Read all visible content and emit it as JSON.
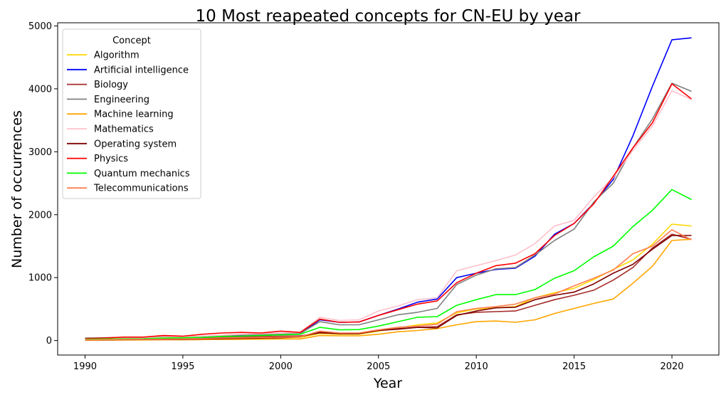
{
  "chart_data": {
    "type": "line",
    "title": "10 Most reapeated concepts for CN-EU by year",
    "xlabel": "Year",
    "ylabel": "Number of occurrences",
    "xlim": [
      1988.6,
      2022.4
    ],
    "ylim": [
      -230,
      5050
    ],
    "xticks": [
      1990,
      1995,
      2000,
      2005,
      2010,
      2015,
      2020
    ],
    "yticks": [
      0,
      1000,
      2000,
      3000,
      4000,
      5000
    ],
    "grid": false,
    "legend": {
      "title": "Concept",
      "placement": "top-left"
    },
    "x": [
      1990,
      1991,
      1992,
      1993,
      1994,
      1995,
      1996,
      1997,
      1998,
      1999,
      2000,
      2001,
      2002,
      2003,
      2004,
      2005,
      2006,
      2007,
      2008,
      2009,
      2010,
      2011,
      2012,
      2013,
      2014,
      2015,
      2016,
      2017,
      2018,
      2019,
      2020,
      2021
    ],
    "series": [
      {
        "name": "Algorithm",
        "color": "#FFD700",
        "values": [
          10,
          12,
          15,
          18,
          20,
          22,
          25,
          30,
          35,
          40,
          45,
          50,
          110,
          100,
          100,
          150,
          200,
          250,
          280,
          440,
          500,
          520,
          540,
          680,
          760,
          830,
          970,
          1130,
          1280,
          1530,
          1850,
          1820
        ]
      },
      {
        "name": "Artificial intelligence",
        "color": "#0000FF",
        "values": [
          20,
          25,
          30,
          35,
          40,
          45,
          55,
          70,
          75,
          85,
          95,
          105,
          330,
          290,
          295,
          400,
          500,
          610,
          660,
          1000,
          1070,
          1130,
          1150,
          1340,
          1690,
          1860,
          2180,
          2560,
          3250,
          4040,
          4780,
          4810
        ]
      },
      {
        "name": "Biology",
        "color": "#A52A2A",
        "values": [
          15,
          18,
          22,
          24,
          28,
          30,
          40,
          55,
          60,
          65,
          70,
          75,
          120,
          110,
          110,
          160,
          190,
          210,
          220,
          410,
          450,
          460,
          470,
          560,
          650,
          720,
          800,
          960,
          1160,
          1470,
          1690,
          1610
        ]
      },
      {
        "name": "Engineering",
        "color": "#808080",
        "values": [
          40,
          45,
          50,
          55,
          60,
          60,
          70,
          80,
          90,
          95,
          100,
          110,
          300,
          250,
          250,
          330,
          410,
          450,
          510,
          890,
          1040,
          1140,
          1160,
          1360,
          1590,
          1770,
          2200,
          2500,
          3060,
          3520,
          4090,
          3960
        ]
      },
      {
        "name": "Machine learning",
        "color": "#FFA500",
        "values": [
          5,
          6,
          8,
          10,
          12,
          12,
          15,
          18,
          20,
          22,
          25,
          25,
          80,
          75,
          75,
          100,
          140,
          160,
          190,
          250,
          300,
          310,
          290,
          330,
          430,
          510,
          590,
          660,
          910,
          1180,
          1590,
          1610
        ]
      },
      {
        "name": "Mathematics",
        "color": "#FFC0CB",
        "values": [
          30,
          35,
          40,
          45,
          55,
          60,
          70,
          85,
          100,
          110,
          120,
          130,
          370,
          320,
          330,
          470,
          550,
          650,
          680,
          1110,
          1190,
          1270,
          1360,
          1540,
          1820,
          1910,
          2280,
          2590,
          3020,
          3410,
          3970,
          3830
        ]
      },
      {
        "name": "Operating system",
        "color": "#800000",
        "values": [
          10,
          12,
          15,
          16,
          18,
          20,
          25,
          30,
          35,
          40,
          45,
          60,
          130,
          110,
          110,
          160,
          180,
          210,
          200,
          400,
          470,
          520,
          530,
          650,
          720,
          770,
          900,
          1070,
          1210,
          1450,
          1670,
          1670
        ]
      },
      {
        "name": "Physics",
        "color": "#FF0000",
        "values": [
          30,
          40,
          55,
          55,
          80,
          70,
          100,
          120,
          130,
          120,
          150,
          130,
          340,
          290,
          295,
          400,
          490,
          580,
          630,
          920,
          1070,
          1190,
          1230,
          1380,
          1670,
          1860,
          2170,
          2610,
          3060,
          3460,
          4080,
          3840
        ]
      },
      {
        "name": "Quantum mechanics",
        "color": "#00FF00",
        "values": [
          20,
          25,
          28,
          30,
          40,
          45,
          50,
          65,
          70,
          80,
          90,
          100,
          210,
          170,
          175,
          230,
          300,
          370,
          380,
          560,
          650,
          730,
          730,
          810,
          990,
          1110,
          1330,
          1500,
          1810,
          2070,
          2400,
          2240
        ]
      },
      {
        "name": "Telecommunications",
        "color": "#FF7F50",
        "values": [
          12,
          15,
          18,
          20,
          22,
          25,
          30,
          40,
          45,
          50,
          55,
          60,
          150,
          120,
          120,
          170,
          210,
          230,
          260,
          460,
          510,
          540,
          580,
          680,
          740,
          870,
          990,
          1120,
          1380,
          1500,
          1760,
          1600
        ]
      }
    ]
  }
}
